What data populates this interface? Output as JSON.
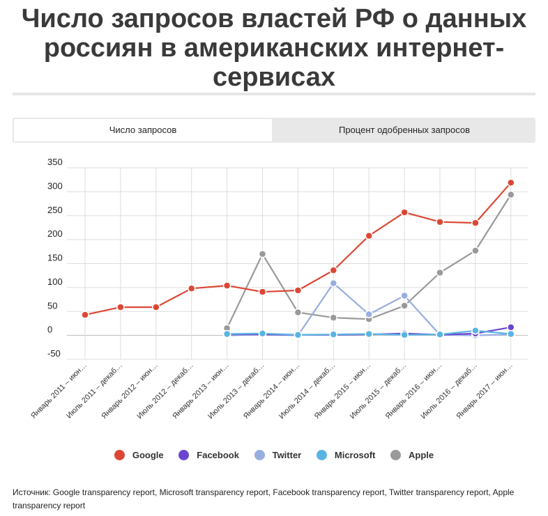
{
  "page": {
    "title": "Число запросов властей РФ о данных россиян в американских интернет-сервисах",
    "tabs": [
      {
        "label": "Число запросов",
        "active": true
      },
      {
        "label": "Процент одобренных запросов",
        "active": false
      }
    ],
    "source": "Источник: Google transparency report, Microsoft transparency report, Facebook transparency report, Twitter transparency report, Apple transparency report"
  },
  "chart_data": {
    "type": "line",
    "categories": [
      "Январь 2011 – июн…",
      "Июль 2011 – декаб…",
      "Январь 2012 – июн…",
      "Июль 2012 – декаб…",
      "Январь 2013 – июн…",
      "Июль 2013 – декаб…",
      "Январь 2014 – июн…",
      "Июль 2014 – декаб…",
      "Январь 2015 – июн…",
      "Июль 2015 – декаб…",
      "Январь 2016 – июн…",
      "Июль 2016 – декаб…",
      "Январь 2017 – июн…"
    ],
    "ylim": [
      -50,
      350
    ],
    "yticks": [
      -50,
      0,
      50,
      100,
      150,
      200,
      250,
      300,
      350
    ],
    "grid": true,
    "legend_position": "bottom",
    "series": [
      {
        "name": "Apple",
        "color": "#999999",
        "values": [
          null,
          null,
          null,
          null,
          15,
          170,
          48,
          37,
          34,
          62,
          131,
          177,
          294
        ]
      },
      {
        "name": "Twitter",
        "color": "#98aee0",
        "values": [
          null,
          null,
          null,
          null,
          0,
          2,
          0,
          109,
          44,
          83,
          1,
          0,
          2
        ]
      },
      {
        "name": "Facebook",
        "color": "#6a46d0",
        "values": [
          null,
          null,
          null,
          null,
          2,
          2,
          1,
          1,
          2,
          4,
          1,
          4,
          17
        ]
      },
      {
        "name": "Microsoft",
        "color": "#5ab4e3",
        "values": [
          null,
          null,
          null,
          null,
          3,
          4,
          1,
          2,
          3,
          1,
          2,
          10,
          3
        ]
      },
      {
        "name": "Google",
        "color": "#dc4735",
        "values": [
          43,
          59,
          59,
          98,
          104,
          91,
          94,
          136,
          208,
          257,
          237,
          235,
          319
        ]
      }
    ],
    "legend": [
      "Google",
      "Facebook",
      "Twitter",
      "Microsoft",
      "Apple"
    ]
  }
}
